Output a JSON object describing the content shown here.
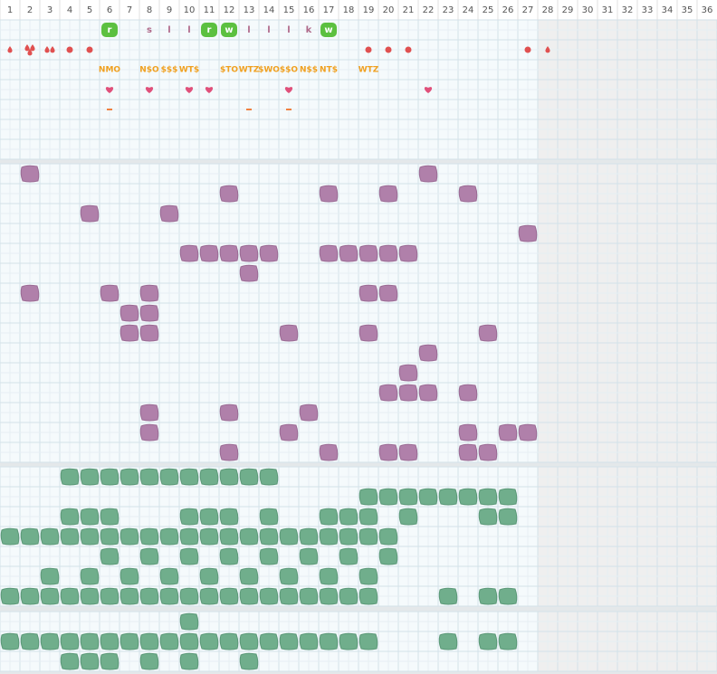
{
  "columns": [
    1,
    2,
    3,
    4,
    5,
    6,
    7,
    8,
    9,
    10,
    11,
    12,
    13,
    14,
    15,
    16,
    17,
    18,
    19,
    20,
    21,
    22,
    23,
    24,
    25,
    26,
    27,
    28,
    29,
    30,
    31,
    32,
    33,
    34,
    35,
    36
  ],
  "disabled_from_column": 28,
  "badges": [
    {
      "column": 6,
      "text": "r",
      "style": "green"
    },
    {
      "column": 8,
      "text": "s",
      "style": "plain"
    },
    {
      "column": 9,
      "text": "l",
      "style": "plain"
    },
    {
      "column": 10,
      "text": "l",
      "style": "plain"
    },
    {
      "column": 11,
      "text": "r",
      "style": "green"
    },
    {
      "column": 12,
      "text": "w",
      "style": "green"
    },
    {
      "column": 13,
      "text": "l",
      "style": "plain"
    },
    {
      "column": 14,
      "text": "l",
      "style": "plain"
    },
    {
      "column": 15,
      "text": "l",
      "style": "plain"
    },
    {
      "column": 16,
      "text": "k",
      "style": "plain"
    },
    {
      "column": 17,
      "text": "w",
      "style": "green"
    }
  ],
  "markers": [
    {
      "column": 1,
      "kind": "drop"
    },
    {
      "column": 2,
      "kind": "drops3"
    },
    {
      "column": 3,
      "kind": "drops2"
    },
    {
      "column": 4,
      "kind": "dot"
    },
    {
      "column": 5,
      "kind": "dot"
    },
    {
      "column": 19,
      "kind": "dot"
    },
    {
      "column": 20,
      "kind": "dot"
    },
    {
      "column": 21,
      "kind": "dot"
    },
    {
      "column": 27,
      "kind": "dot"
    },
    {
      "column": 28,
      "kind": "drop"
    }
  ],
  "codes": [
    {
      "column": 6,
      "text": "NMO"
    },
    {
      "column": 8,
      "text": "N$O"
    },
    {
      "column": 9,
      "text": "$$$"
    },
    {
      "column": 10,
      "text": "WT$"
    },
    {
      "column": 12,
      "text": "$TO"
    },
    {
      "column": 13,
      "text": "WTZ"
    },
    {
      "column": 14,
      "text": "$WO"
    },
    {
      "column": 15,
      "text": "$$O"
    },
    {
      "column": 16,
      "text": "N$$"
    },
    {
      "column": 17,
      "text": "NT$"
    },
    {
      "column": 19,
      "text": "WTZ"
    }
  ],
  "hearts": [
    6,
    8,
    10,
    11,
    15,
    22
  ],
  "dashes": [
    6,
    13,
    15
  ],
  "purple_rows": [
    [
      2,
      22
    ],
    [
      12,
      17,
      20,
      24
    ],
    [
      5,
      9
    ],
    [
      27
    ],
    [
      10,
      11,
      12,
      13,
      14,
      17,
      18,
      19,
      20,
      21
    ],
    [
      13
    ],
    [
      2,
      6,
      8,
      19,
      20
    ],
    [
      7,
      8
    ],
    [
      7,
      8,
      15,
      19,
      25
    ],
    [
      22
    ],
    [
      21
    ],
    [
      20,
      21,
      22,
      24
    ],
    [
      8,
      12,
      16
    ],
    [
      8,
      15,
      24,
      26,
      27
    ],
    [
      12,
      17,
      20,
      21,
      24,
      25
    ]
  ],
  "green_rows": [
    [
      4,
      5,
      6,
      7,
      8,
      9,
      10,
      11,
      12,
      13,
      14
    ],
    [
      19,
      20,
      21,
      22,
      23,
      24,
      25,
      26
    ],
    [
      4,
      5,
      6,
      10,
      11,
      12,
      14,
      17,
      18,
      19,
      21,
      25,
      26
    ],
    [
      1,
      2,
      3,
      4,
      5,
      6,
      7,
      8,
      9,
      10,
      11,
      12,
      13,
      14,
      15,
      16,
      17,
      18,
      19,
      20
    ],
    [
      6,
      8,
      10,
      12,
      14,
      16,
      18,
      20
    ],
    [
      3,
      5,
      7,
      9,
      11,
      13,
      15,
      17,
      19
    ],
    [
      1,
      2,
      3,
      4,
      5,
      6,
      7,
      8,
      9,
      10,
      11,
      12,
      13,
      14,
      15,
      16,
      17,
      18,
      19,
      23,
      25,
      26
    ]
  ],
  "green_rows_2": [
    [
      10
    ],
    [
      1,
      2,
      3,
      4,
      5,
      6,
      7,
      8,
      9,
      10,
      11,
      12,
      13,
      14,
      15,
      16,
      17,
      18,
      19,
      23,
      25,
      26
    ],
    [
      4,
      5,
      6,
      8,
      10,
      13
    ]
  ]
}
